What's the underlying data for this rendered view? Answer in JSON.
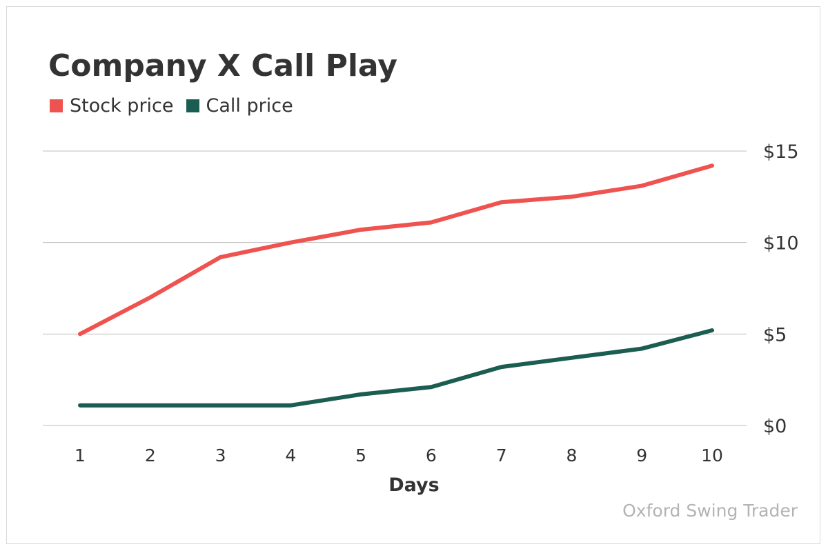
{
  "title": "Company X Call Play",
  "watermark": "Oxford Swing Trader",
  "colors": {
    "stock": "#ee5350",
    "call": "#1b5e51",
    "grid": "#bdbdbd",
    "text": "#333333"
  },
  "chart_data": {
    "type": "line",
    "title": "Company X Call Play",
    "xlabel": "Days",
    "ylabel": "",
    "x": [
      1,
      2,
      3,
      4,
      5,
      6,
      7,
      8,
      9,
      10
    ],
    "ylim": [
      0,
      15
    ],
    "yticks": [
      0,
      5,
      10,
      15
    ],
    "ytick_labels": [
      "$0",
      "$5",
      "$10",
      "$15"
    ],
    "legend": "top-left",
    "grid": true,
    "series": [
      {
        "name": "Stock price",
        "values": [
          5.0,
          7.0,
          9.2,
          10.0,
          10.7,
          11.1,
          12.2,
          12.5,
          13.1,
          14.2
        ]
      },
      {
        "name": "Call price",
        "values": [
          1.1,
          1.1,
          1.1,
          1.1,
          1.7,
          2.1,
          3.2,
          3.7,
          4.2,
          5.2
        ]
      }
    ]
  }
}
